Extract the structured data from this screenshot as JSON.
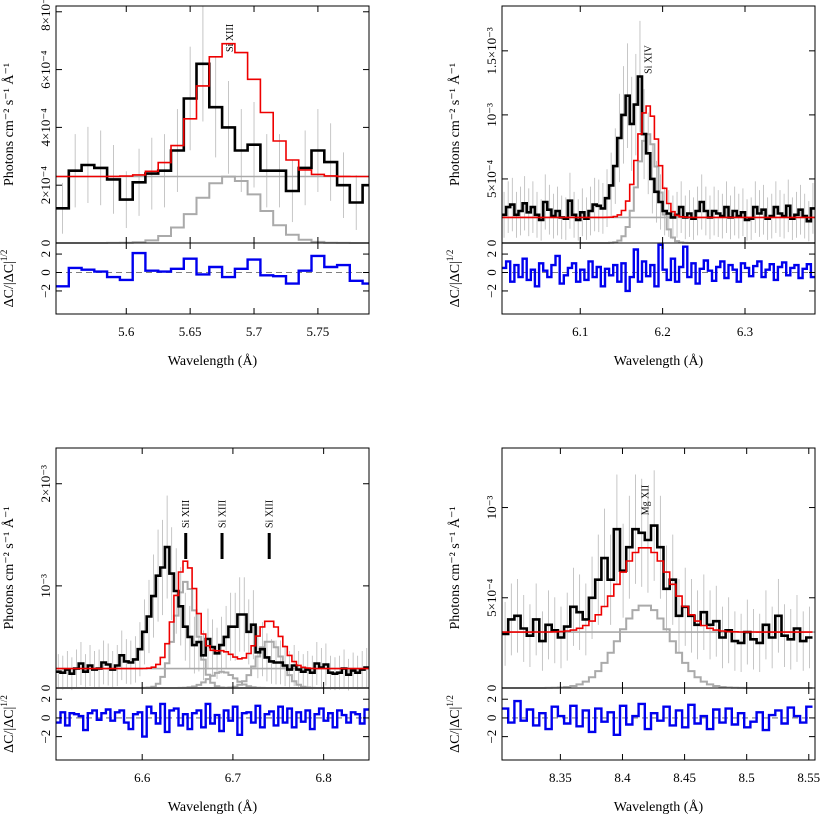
{
  "chart_data": [
    {
      "type": "line",
      "ylabel": "Photons cm⁻² s⁻¹ Å⁻¹",
      "resid_label": "ΔC/|ΔC|^1/2",
      "xlabel": "Wavelength (Å)",
      "xlim": [
        5.545,
        5.79
      ],
      "ylim": [
        0,
        0.00082
      ],
      "rlim": [
        -4.5,
        3.2
      ],
      "xticks": [
        5.6,
        5.65,
        5.7,
        5.75
      ],
      "xtick_labels": [
        "5.6",
        "5.65",
        "5.7",
        "5.75"
      ],
      "yticks": [
        0,
        0.0002,
        0.0004,
        0.0006,
        0.0008
      ],
      "ytick_labels": [
        "0",
        "2×10⁻⁴",
        "4×10⁻⁴",
        "6×10⁻⁴",
        "8×10⁻⁴"
      ],
      "rticks": [
        -2,
        0,
        2
      ],
      "rtick_labels": [
        "−2",
        "0",
        "2"
      ],
      "continuum": 0.00023,
      "lines": [
        {
          "label": "Si XIII",
          "center": 5.681,
          "amp": 0.00046,
          "sigma": 0.024,
          "component_amp": 0.00023,
          "mark": false
        }
      ],
      "bin_width": 0.01,
      "data": [
        0.00012,
        0.00025,
        0.00027,
        0.00026,
        0.00022,
        0.00015,
        0.00021,
        0.00024,
        0.00025,
        0.00032,
        0.0005,
        0.00062,
        0.00047,
        0.0004,
        0.00032,
        0.00034,
        0.00025,
        0.00025,
        0.00018,
        0.00026,
        0.00032,
        0.00028,
        0.0002,
        0.00014,
        0.0002
      ],
      "residuals": [
        -1.5,
        0.5,
        0.3,
        0.1,
        -0.5,
        -0.8,
        2.1,
        0.2,
        0.1,
        0.4,
        1.5,
        -0.2,
        0.6,
        -0.5,
        0.4,
        1.4,
        -0.3,
        -0.4,
        -1.2,
        0.2,
        1.8,
        0.6,
        0.8,
        -0.9,
        -1.2
      ]
    },
    {
      "type": "line",
      "ylabel": "Photons cm⁻² s⁻¹ Å⁻¹",
      "resid_label": "ΔC/|ΔC|^1/2",
      "xlabel": "Wavelength (Å)",
      "xlim": [
        6.005,
        6.385
      ],
      "ylim": [
        0,
        0.00185
      ],
      "rlim": [
        -4.5,
        3.2
      ],
      "xticks": [
        6.1,
        6.2,
        6.3
      ],
      "xtick_labels": [
        "6.1",
        "6.2",
        "6.3"
      ],
      "yticks": [
        0,
        0.0005,
        0.001,
        0.0015
      ],
      "ytick_labels": [
        "0",
        "5×10⁻⁴",
        "10⁻³",
        "1.5×10⁻³"
      ],
      "rticks": [
        -2,
        0,
        2
      ],
      "rtick_labels": [
        "−2",
        "0",
        "2"
      ],
      "continuum": 0.0002,
      "lines": [
        {
          "label": "Si XIV",
          "center": 6.182,
          "amp": 0.00087,
          "sigma": 0.0125,
          "component_amp": 0.00085,
          "mark": false
        }
      ],
      "bin_width": 0.005,
      "data": [
        0.00022,
        0.00028,
        0.0003,
        0.00022,
        0.00025,
        0.00031,
        0.00024,
        0.00028,
        0.00022,
        0.00018,
        0.00032,
        0.00026,
        0.00021,
        0.00025,
        0.0002,
        0.00019,
        0.00033,
        0.00022,
        0.00018,
        0.00024,
        0.00019,
        0.00025,
        0.0003,
        0.00029,
        0.00027,
        0.00035,
        0.00045,
        0.0006,
        0.00082,
        0.001,
        0.00115,
        0.00093,
        0.00108,
        0.0013,
        0.00085,
        0.0007,
        0.0005,
        0.0004,
        0.00032,
        0.00025,
        0.00023,
        0.0002,
        0.00022,
        0.00028,
        0.0002,
        0.00023,
        0.00019,
        0.00025,
        0.00032,
        0.00025,
        0.0002,
        0.00025,
        0.00023,
        0.00021,
        0.00028,
        0.0002,
        0.00025,
        0.00021,
        0.00024,
        0.00018,
        0.00019,
        0.00028,
        0.00023,
        0.00026,
        0.00019,
        0.00021,
        0.00028,
        0.00023,
        0.00021,
        0.00029,
        0.00019,
        0.00022,
        0.00026,
        0.00021,
        0.00017,
        0.00027
      ],
      "residuals": [
        0.5,
        1.2,
        -1.0,
        0.8,
        -0.5,
        1.5,
        -0.8,
        0.3,
        -1.5,
        1.0,
        0.2,
        -0.5,
        0.8,
        1.8,
        -1.2,
        -0.3,
        0.5,
        1.0,
        -1.0,
        0.3,
        -0.8,
        1.2,
        -0.5,
        0.6,
        -1.5,
        0.4,
        -0.3,
        0.8,
        -1.0,
        1.0,
        -2.0,
        -0.5,
        2.5,
        -1.0,
        1.2,
        -0.4,
        0.8,
        -1.5,
        3.0,
        0.3,
        -0.8,
        1.5,
        -1.0,
        0.6,
        2.8,
        -0.5,
        1.0,
        -1.2,
        0.4,
        1.3,
        0.2,
        -0.9,
        0.6,
        1.2,
        -0.6,
        0.8,
        0.3,
        -1.0,
        1.0,
        0.5,
        -0.4,
        0.7,
        1.2,
        -0.5,
        0.3,
        0.9,
        -0.8,
        0.6,
        1.1,
        -0.3,
        0.5,
        0.8,
        -0.6,
        0.4,
        0.9,
        -0.5
      ]
    },
    {
      "type": "line",
      "ylabel": "Photons cm⁻² s⁻¹ Å⁻¹",
      "resid_label": "ΔC/|ΔC|^1/2",
      "xlabel": "Wavelength (Å)",
      "xlim": [
        6.505,
        6.85
      ],
      "ylim": [
        0,
        0.00235
      ],
      "rlim": [
        -4.5,
        3.2
      ],
      "xticks": [
        6.6,
        6.7,
        6.8
      ],
      "xtick_labels": [
        "6.6",
        "6.7",
        "6.8"
      ],
      "yticks": [
        0,
        0.001,
        0.002
      ],
      "ytick_labels": [
        "0",
        "10⁻³",
        "2×10⁻³"
      ],
      "rticks": [
        -2,
        0,
        2
      ],
      "rtick_labels": [
        "−2",
        "0",
        "2"
      ],
      "continuum": 0.00019,
      "lines": [
        {
          "label": "Si XIII",
          "center": 6.648,
          "amp": 0.00105,
          "sigma": 0.012,
          "component_amp": 0.00104,
          "mark": true
        },
        {
          "label": "Si XIII",
          "center": 6.688,
          "amp": 0.00017,
          "sigma": 0.014,
          "component_amp": 0.00016,
          "mark": true
        },
        {
          "label": "Si XIII",
          "center": 6.74,
          "amp": 0.00047,
          "sigma": 0.014,
          "component_amp": 0.00046,
          "mark": true
        }
      ],
      "bin_width": 0.005,
      "data": [
        0.00016,
        0.00015,
        0.00018,
        0.00014,
        0.00019,
        0.00024,
        0.00016,
        0.00022,
        0.00018,
        0.00019,
        0.00025,
        0.00023,
        0.00018,
        0.00022,
        0.00032,
        0.00026,
        0.00025,
        0.00028,
        0.00038,
        0.00055,
        0.0007,
        0.0009,
        0.0011,
        0.00118,
        0.00138,
        0.00112,
        0.00095,
        0.0008,
        0.0006,
        0.0005,
        0.00042,
        0.00045,
        0.00032,
        0.00048,
        0.0004,
        0.00034,
        0.00042,
        0.0005,
        0.0006,
        0.0006,
        0.00072,
        0.00072,
        0.00055,
        0.00062,
        0.00035,
        0.00038,
        0.0003,
        0.00026,
        0.00025,
        0.00025,
        0.00022,
        0.00018,
        0.00022,
        0.00018,
        0.00016,
        0.00018,
        0.00015,
        0.00024,
        0.0002,
        0.00023,
        0.00015,
        0.00014,
        0.00015,
        0.00019,
        0.00013,
        0.00017,
        0.00015,
        0.00018,
        0.0002
      ],
      "residuals": [
        -0.5,
        0.6,
        -0.8,
        0.5,
        0.4,
        0.2,
        -1.3,
        0.5,
        0.8,
        -0.2,
        0.5,
        0.9,
        -0.3,
        0.6,
        0.8,
        -0.5,
        -1.2,
        0.4,
        0.6,
        -2.0,
        1.2,
        0.5,
        -0.6,
        1.5,
        -1.5,
        0.8,
        1.0,
        -0.8,
        0.4,
        -1.2,
        0.5,
        0.8,
        -1.0,
        1.5,
        -0.6,
        0.3,
        -1.4,
        0.8,
        -0.3,
        1.2,
        -1.8,
        0.5,
        0.6,
        -0.5,
        1.3,
        -1.0,
        0.4,
        0.7,
        -0.8,
        1.2,
        -0.5,
        1.0,
        -1.0,
        0.6,
        -0.4,
        0.8,
        -1.2,
        0.4,
        1.0,
        -0.3,
        0.5,
        -1.0,
        0.8,
        0.3,
        -0.5,
        0.6,
        0.4,
        -0.6,
        0.9
      ]
    },
    {
      "type": "line",
      "ylabel": "Photons cm⁻² s⁻¹ Å⁻¹",
      "resid_label": "ΔC/|ΔC|^1/2",
      "xlabel": "Wavelength (Å)",
      "xlim": [
        8.303,
        8.555
      ],
      "ylim": [
        0,
        0.00133
      ],
      "rlim": [
        -4.5,
        3.2
      ],
      "xticks": [
        8.35,
        8.4,
        8.45,
        8.5,
        8.55
      ],
      "xtick_labels": [
        "8.35",
        "8.4",
        "8.45",
        "8.5",
        "8.55"
      ],
      "yticks": [
        0,
        0.0005,
        0.001
      ],
      "ytick_labels": [
        "0",
        "5×10⁻⁴",
        "10⁻³"
      ],
      "rticks": [
        -2,
        0,
        2
      ],
      "rtick_labels": [
        "−2",
        "0",
        "2"
      ],
      "continuum": 0.00031,
      "lines": [
        {
          "label": "Mg XII",
          "center": 8.418,
          "amp": 0.00047,
          "sigma": 0.021,
          "component_amp": 0.00046,
          "mark": false
        }
      ],
      "bin_width": 0.005,
      "data": [
        0.0003,
        0.00038,
        0.0004,
        0.00033,
        0.00029,
        0.00038,
        0.00026,
        0.00035,
        0.00032,
        0.00028,
        0.00034,
        0.00045,
        0.00042,
        0.00038,
        0.0005,
        0.0006,
        0.00072,
        0.0006,
        0.00088,
        0.00065,
        0.00078,
        0.00088,
        0.00086,
        0.00082,
        0.0009,
        0.00078,
        0.00055,
        0.0006,
        0.0004,
        0.00045,
        0.0004,
        0.00035,
        0.00042,
        0.00035,
        0.00037,
        0.00028,
        0.00032,
        0.00026,
        0.00025,
        0.00031,
        0.00027,
        0.00025,
        0.00035,
        0.00028,
        0.0004,
        0.00029,
        0.00027,
        0.00033,
        0.00026,
        0.00028
      ],
      "residuals": [
        1.0,
        -0.5,
        1.8,
        -0.3,
        0.9,
        -0.8,
        0.5,
        -1.2,
        1.2,
        0.2,
        -0.6,
        1.3,
        -0.9,
        0.8,
        -1.5,
        1.0,
        -0.4,
        0.6,
        -1.8,
        1.3,
        -0.7,
        0.2,
        1.5,
        -1.2,
        0.5,
        -0.3,
        1.2,
        -0.8,
        0.8,
        -1.0,
        1.4,
        -0.6,
        0.2,
        -1.2,
        0.9,
        -0.5,
        1.0,
        -0.7,
        0.5,
        -1.0,
        -0.4,
        0.6,
        -1.3,
        0.3,
        0.8,
        -0.6,
        1.1,
        0.2,
        -0.5,
        1.2
      ]
    }
  ]
}
